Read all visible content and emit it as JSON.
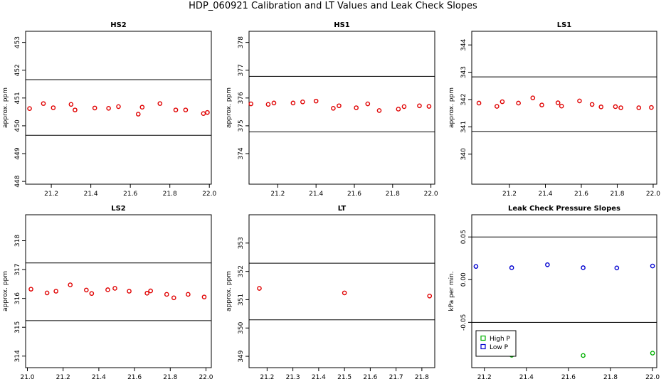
{
  "main_title": "HDP_060921 Calibration and LT Values and Leak Check Slopes",
  "colors": {
    "points": "#e00000",
    "high_p": "#00b000",
    "low_p": "#0000d0",
    "line": "#000000"
  },
  "chart_data": [
    {
      "type": "scatter",
      "title": "HS2",
      "ylabel": "approx. ppm",
      "xlim": [
        21.07,
        22.01
      ],
      "ylim": [
        447.9,
        453.4
      ],
      "xticks": [
        "21.2",
        "21.4",
        "21.6",
        "21.8",
        "22.0"
      ],
      "yticks": [
        "448",
        "449",
        "450",
        "451",
        "452",
        "453"
      ],
      "hlines": [
        449.66,
        451.66
      ],
      "series": [
        {
          "name": "values",
          "color": "#e00000",
          "x": [
            21.09,
            21.16,
            21.21,
            21.3,
            21.32,
            21.42,
            21.49,
            21.54,
            21.64,
            21.66,
            21.75,
            21.83,
            21.88,
            21.97,
            21.99
          ],
          "y": [
            450.62,
            450.8,
            450.65,
            450.77,
            450.57,
            450.64,
            450.63,
            450.69,
            450.42,
            450.67,
            450.8,
            450.57,
            450.57,
            450.44,
            450.48
          ]
        }
      ]
    },
    {
      "type": "scatter",
      "title": "HS1",
      "ylabel": "approx. ppm",
      "xlim": [
        21.05,
        22.02
      ],
      "ylim": [
        372.9,
        378.4
      ],
      "xticks": [
        "21.2",
        "21.4",
        "21.6",
        "21.8",
        "22.0"
      ],
      "yticks": [
        "374",
        "375",
        "376",
        "377",
        "378"
      ],
      "hlines": [
        374.78,
        376.78
      ],
      "series": [
        {
          "name": "values",
          "color": "#e00000",
          "x": [
            21.06,
            21.15,
            21.18,
            21.28,
            21.33,
            21.4,
            21.49,
            21.52,
            21.61,
            21.67,
            21.73,
            21.83,
            21.86,
            21.94,
            21.99
          ],
          "y": [
            375.79,
            375.77,
            375.82,
            375.82,
            375.86,
            375.89,
            375.63,
            375.72,
            375.65,
            375.79,
            375.55,
            375.6,
            375.69,
            375.72,
            375.7
          ]
        }
      ]
    },
    {
      "type": "scatter",
      "title": "LS1",
      "ylabel": "approx. ppm",
      "xlim": [
        20.99,
        22.02
      ],
      "ylim": [
        338.9,
        344.5
      ],
      "xticks": [
        "21.2",
        "21.4",
        "21.6",
        "21.8",
        "22.0"
      ],
      "yticks": [
        "340",
        "341",
        "342",
        "343",
        "344"
      ],
      "hlines": [
        340.83,
        342.83
      ],
      "series": [
        {
          "name": "values",
          "color": "#e00000",
          "x": [
            21.03,
            21.13,
            21.16,
            21.25,
            21.33,
            21.38,
            21.47,
            21.49,
            21.59,
            21.66,
            21.71,
            21.79,
            21.82,
            21.92,
            21.99
          ],
          "y": [
            341.87,
            341.75,
            341.92,
            341.87,
            342.06,
            341.8,
            341.88,
            341.76,
            341.95,
            341.82,
            341.73,
            341.74,
            341.7,
            341.7,
            341.71
          ]
        }
      ]
    },
    {
      "type": "scatter",
      "title": "LS2",
      "ylabel": "approx. ppm",
      "xlim": [
        20.99,
        22.03
      ],
      "ylim": [
        313.6,
        318.9
      ],
      "xticks": [
        "21.0",
        "21.2",
        "21.4",
        "21.6",
        "21.8",
        "22.0"
      ],
      "yticks": [
        "314",
        "315",
        "316",
        "317",
        "318"
      ],
      "hlines": [
        315.23,
        317.23
      ],
      "series": [
        {
          "name": "values",
          "color": "#e00000",
          "x": [
            21.02,
            21.11,
            21.16,
            21.24,
            21.33,
            21.36,
            21.45,
            21.49,
            21.57,
            21.67,
            21.69,
            21.78,
            21.82,
            21.9,
            21.99
          ],
          "y": [
            316.32,
            316.19,
            316.25,
            316.47,
            316.29,
            316.17,
            316.3,
            316.35,
            316.25,
            316.18,
            316.26,
            316.14,
            316.02,
            316.14,
            316.05
          ]
        }
      ]
    },
    {
      "type": "scatter",
      "title": "LT",
      "ylabel": "approx. ppm",
      "xlim": [
        21.13,
        21.85
      ],
      "ylim": [
        348.6,
        354.0
      ],
      "xticks": [
        "21.2",
        "21.3",
        "21.4",
        "21.5",
        "21.6",
        "21.7",
        "21.8"
      ],
      "yticks": [
        "349",
        "350",
        "351",
        "352",
        "353"
      ],
      "hlines": [
        350.29,
        352.29
      ],
      "series": [
        {
          "name": "values",
          "color": "#e00000",
          "x": [
            21.17,
            21.5,
            21.83
          ],
          "y": [
            351.4,
            351.24,
            351.13
          ]
        }
      ]
    },
    {
      "type": "scatter",
      "title": "Leak Check Pressure Slopes",
      "ylabel": "kPa per min.",
      "xlim": [
        21.14,
        22.02
      ],
      "ylim": [
        -0.103,
        0.076
      ],
      "xticks": [
        "21.2",
        "21.4",
        "21.6",
        "21.8",
        "22.0"
      ],
      "yticks": [
        "-0.05",
        "0.00",
        "0.05"
      ],
      "hlines": [
        -0.05,
        0.05
      ],
      "series": [
        {
          "name": "High P",
          "color": "#00b000",
          "x": [
            21.33,
            21.67,
            22.0
          ],
          "y": [
            -0.0885,
            -0.0888,
            -0.086
          ]
        },
        {
          "name": "Low P",
          "color": "#0000d0",
          "x": [
            21.16,
            21.33,
            21.5,
            21.67,
            21.83,
            22.0
          ],
          "y": [
            0.0155,
            0.014,
            0.0175,
            0.014,
            0.0137,
            0.016
          ]
        }
      ],
      "legend": {
        "placement": "bottom-left",
        "entries": [
          "High P",
          "Low P"
        ]
      }
    }
  ]
}
